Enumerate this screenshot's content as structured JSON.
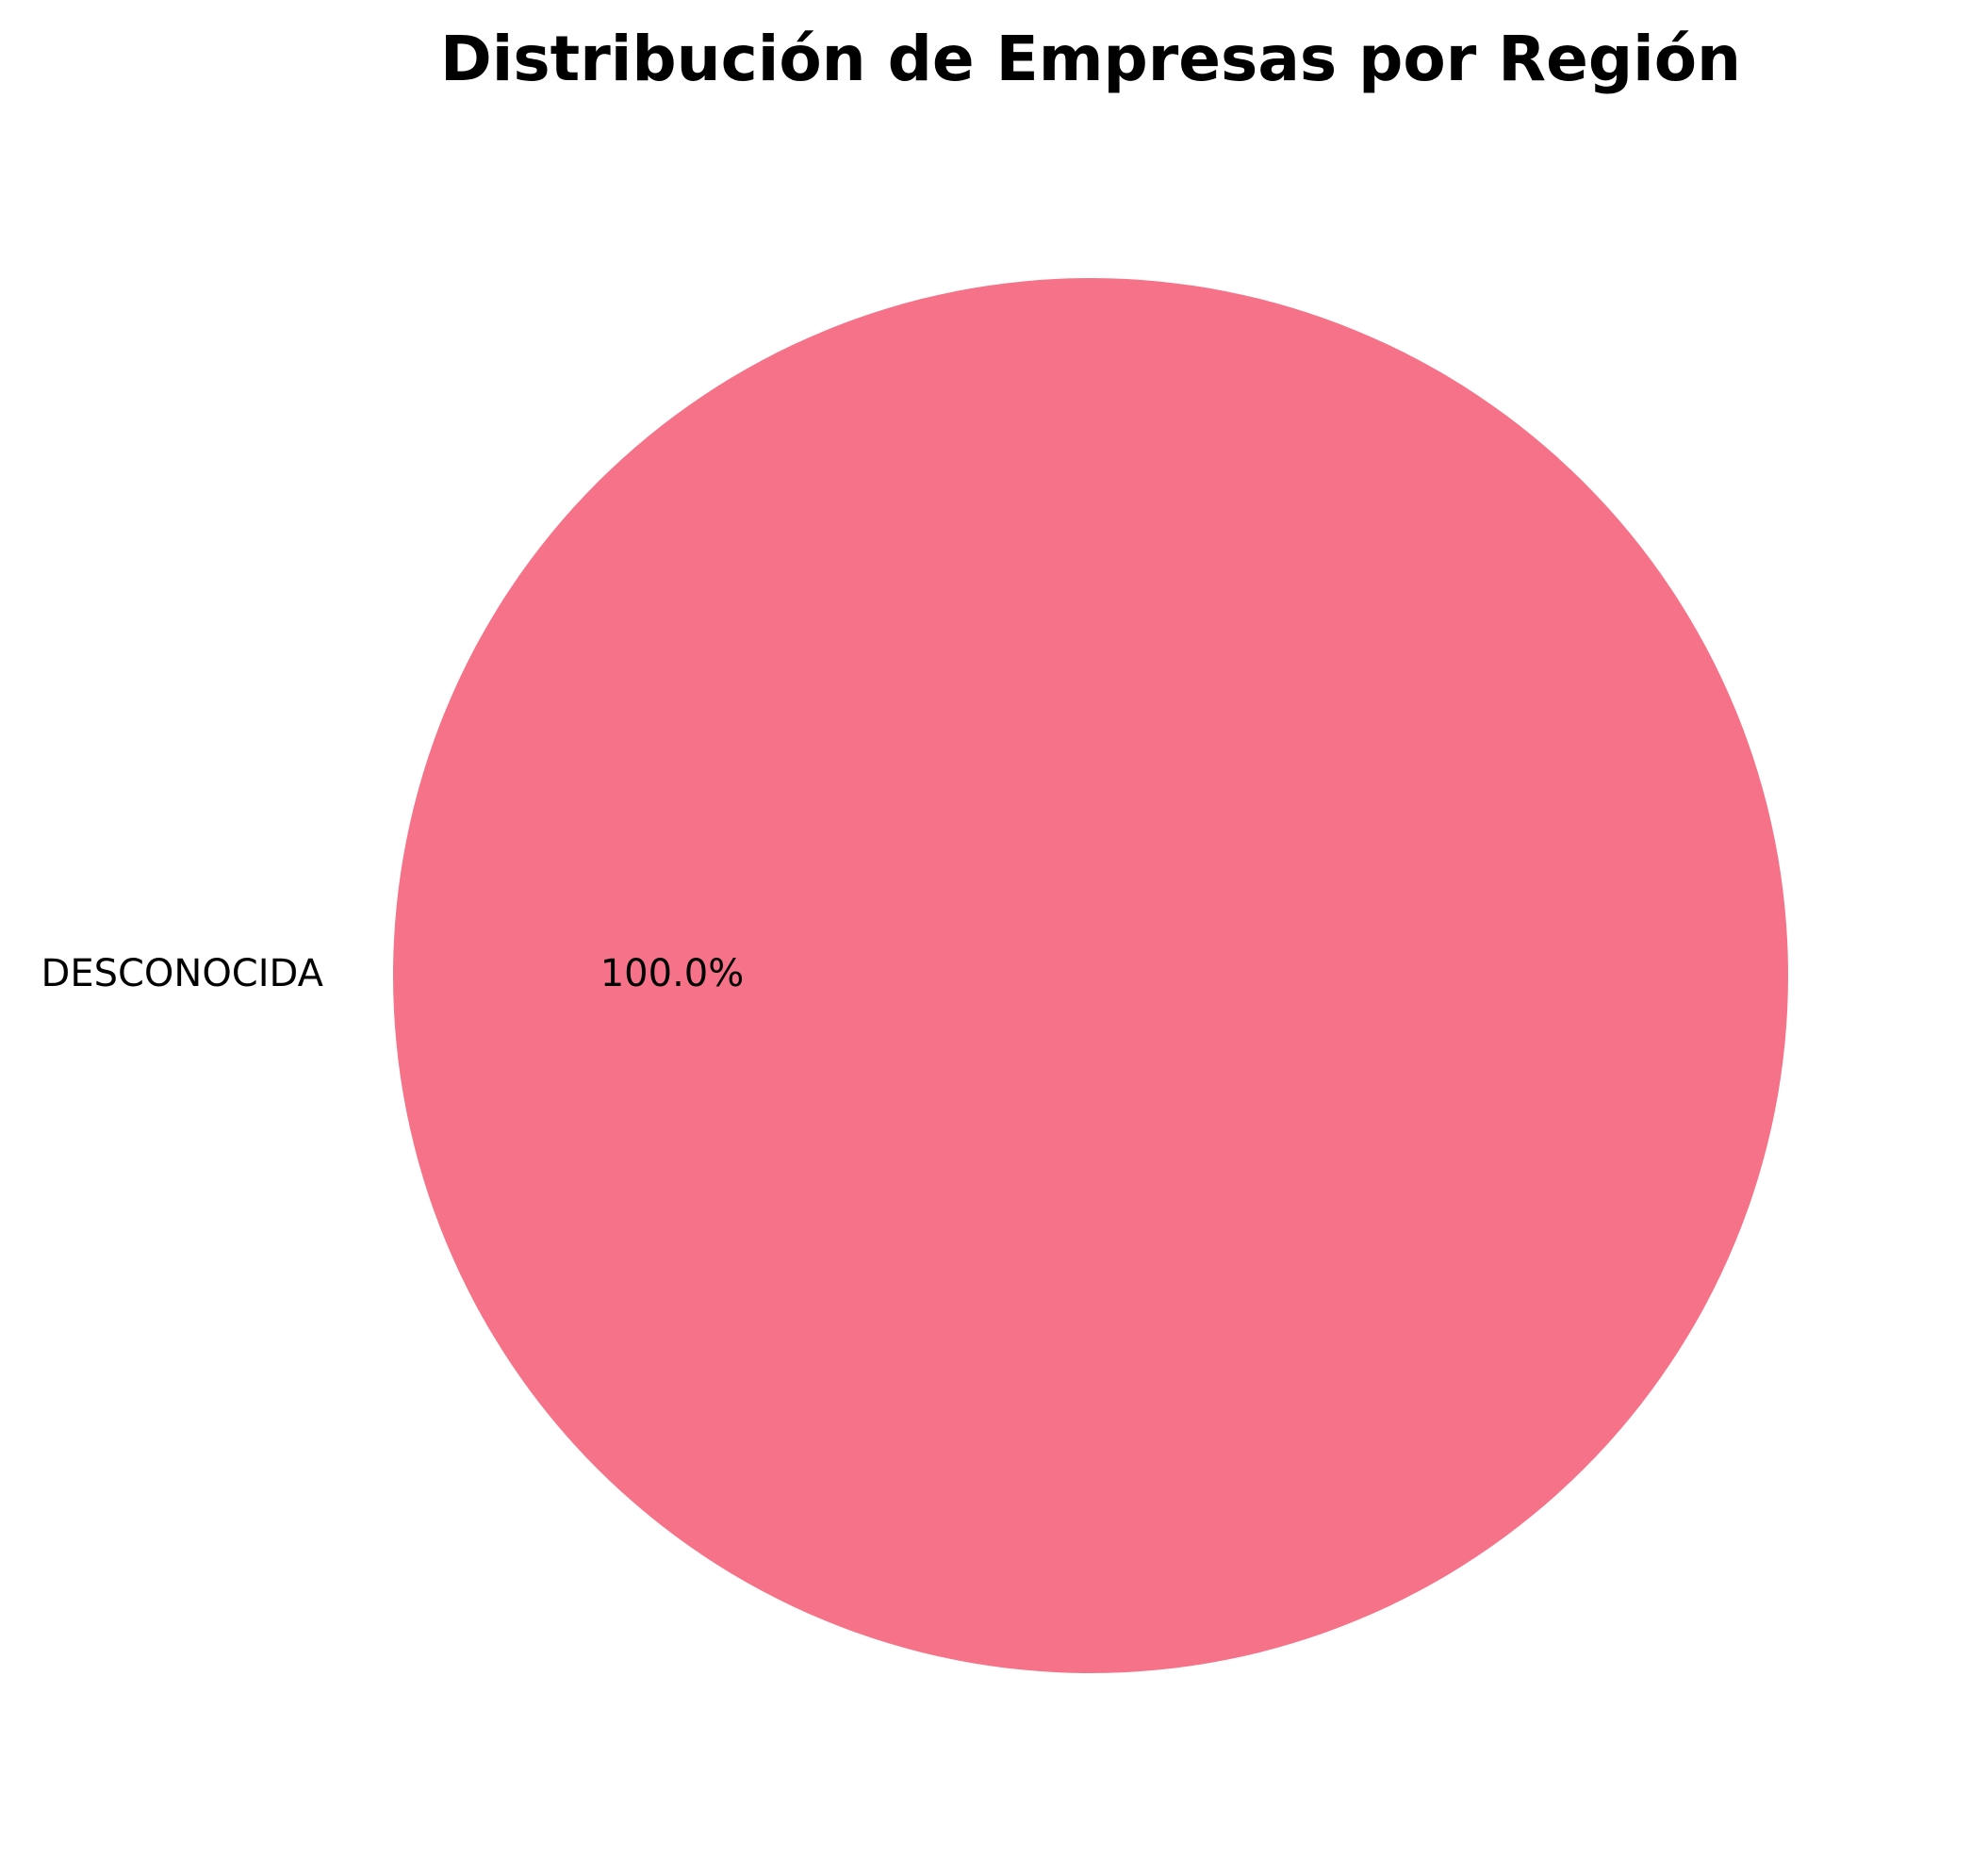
{
  "chart_data": {
    "type": "pie",
    "title": "Distribución de Empresas por Región",
    "categories": [
      "DESCONOCIDA"
    ],
    "values": [
      100.0
    ],
    "percent_labels": [
      "100.0%"
    ],
    "colors": [
      "#f67288"
    ],
    "legend": "none"
  }
}
